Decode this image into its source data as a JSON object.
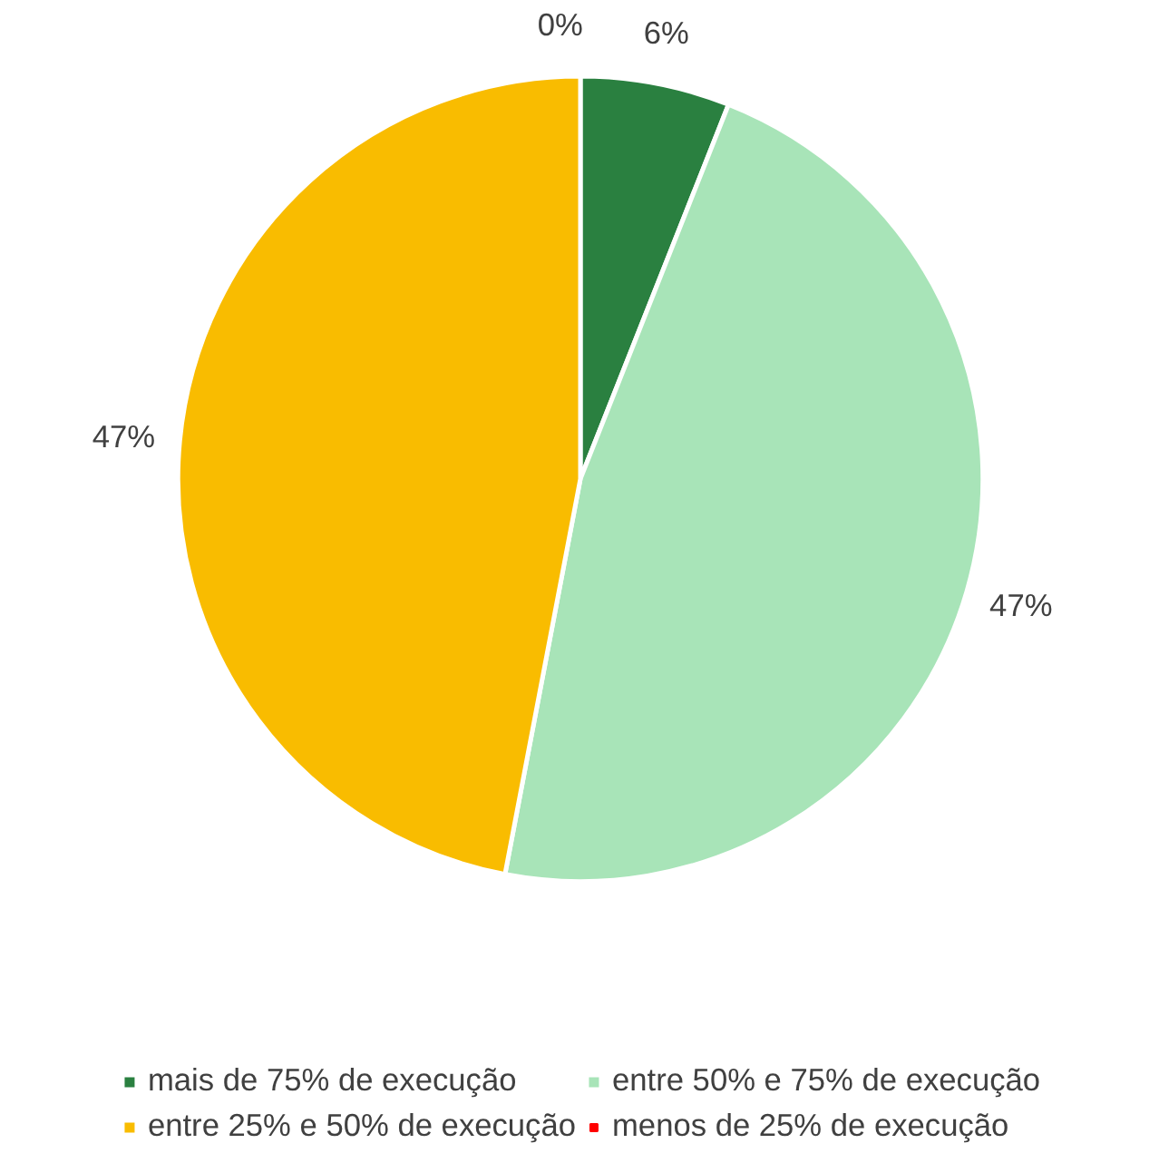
{
  "chart_data": {
    "type": "pie",
    "categories": [
      "mais de 75% de execução",
      "entre 50% e 75% de execução",
      "entre 25% e 50% de execução",
      "menos de 25% de execução"
    ],
    "values": [
      6,
      47,
      47,
      0
    ],
    "colors": [
      "#2a8040",
      "#a8e4b8",
      "#f9bc00",
      "#ff0000"
    ],
    "value_labels": [
      "6%",
      "47%",
      "47%",
      "0%"
    ],
    "legend": "bottom"
  }
}
